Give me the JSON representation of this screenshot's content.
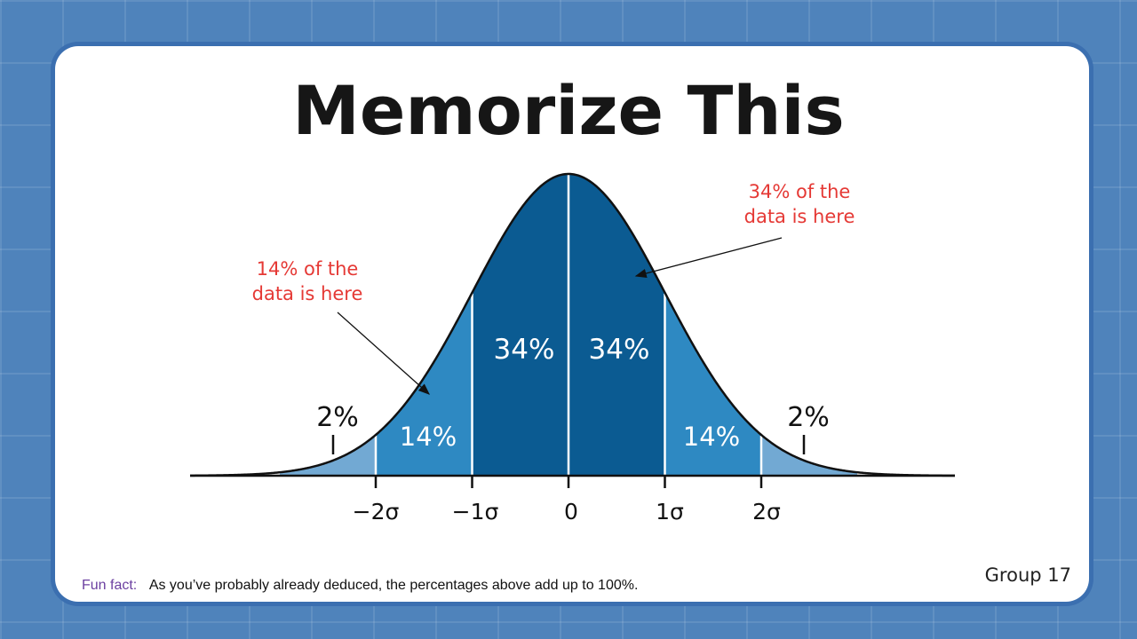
{
  "slide": {
    "title": "Memorize This",
    "fun_fact_label": "Fun fact:",
    "fun_fact_text": "As you’ve probably already deduced, the percentages above add up to 100%.",
    "group_label": "Group 17"
  },
  "diagram": {
    "regions": [
      {
        "name": "left-tail",
        "range": [
          -3,
          -2
        ],
        "label": "2%",
        "color": "#72a9d3"
      },
      {
        "name": "left-second",
        "range": [
          -2,
          -1
        ],
        "label": "14%",
        "color": "#2e89c2"
      },
      {
        "name": "left-first",
        "range": [
          -1,
          0
        ],
        "label": "34%",
        "color": "#0b5b92"
      },
      {
        "name": "right-first",
        "range": [
          0,
          1
        ],
        "label": "34%",
        "color": "#0b5b92"
      },
      {
        "name": "right-second",
        "range": [
          1,
          2
        ],
        "label": "14%",
        "color": "#2e89c2"
      },
      {
        "name": "right-tail",
        "range": [
          2,
          3
        ],
        "label": "2%",
        "color": "#72a9d3"
      }
    ],
    "axis_labels": [
      "−2σ",
      "−1σ",
      "0",
      "1σ",
      "2σ"
    ],
    "annotations": [
      {
        "name": "annotation-14",
        "lines": [
          "14% of the",
          "data is here"
        ],
        "color": "#e53935"
      },
      {
        "name": "annotation-34",
        "lines": [
          "34% of the",
          "data is here"
        ],
        "color": "#e53935"
      }
    ]
  }
}
